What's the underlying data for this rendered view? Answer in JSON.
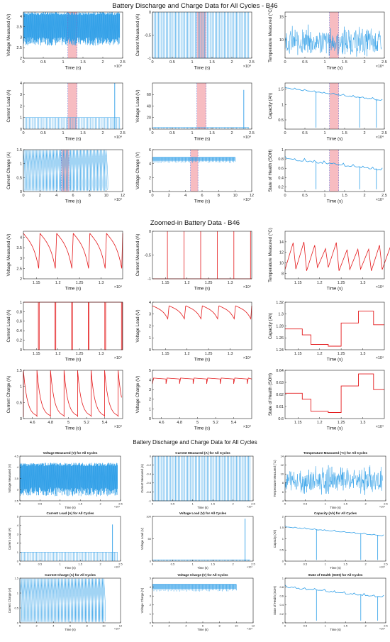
{
  "figure": {
    "title1": "Battery Discharge and Charge Data for All Cycles - B46",
    "title2": "Zoomed-in Battery Data - B46",
    "title3": "Battery Discharge and Charge Data for All Cycles",
    "exponent": "×10⁴"
  },
  "colors": {
    "all_cycles": "#2f9fe8",
    "zoomed": "#e41a1c",
    "highlight": "#f4a6ac",
    "dashed": "#6f6fcf"
  },
  "chart_data": [
    {
      "section": "all",
      "type": "line",
      "ylabel": "Voltage Measured (V)",
      "xlabel": "Time (s)",
      "xlim": [
        0,
        2.5
      ],
      "ylim": [
        2,
        4.2
      ],
      "xticks": [
        "0",
        "0.5",
        "1",
        "1.5",
        "2",
        "2.5"
      ],
      "yticks": [
        "2",
        "2.5",
        "3",
        "3.5",
        "4"
      ],
      "pattern": "band",
      "band": [
        2.6,
        4.2
      ],
      "mean": 3.5,
      "highlight": [
        1.12,
        1.35
      ],
      "xexp": "×10⁴"
    },
    {
      "section": "all",
      "type": "line",
      "ylabel": "Current Measured (A)",
      "xlabel": "Time (s)",
      "xlim": [
        0,
        2.5
      ],
      "ylim": [
        -1,
        0
      ],
      "xticks": [
        "0",
        "0.5",
        "1",
        "1.5",
        "2",
        "2.5"
      ],
      "yticks": [
        "-1",
        "-0.5",
        "0"
      ],
      "pattern": "spikes",
      "base": -1,
      "top": 0,
      "highlight": [
        1.12,
        1.35
      ],
      "xexp": "×10⁴"
    },
    {
      "section": "all",
      "type": "line",
      "ylabel": "Temperature Measured (°C)",
      "xlabel": "Time (s)",
      "xlim": [
        0,
        2.5
      ],
      "ylim": [
        6,
        16
      ],
      "xticks": [
        "0",
        "0.5",
        "1",
        "1.5",
        "2",
        "2.5"
      ],
      "yticks": [
        "10",
        "15"
      ],
      "pattern": "noise",
      "band": [
        6.5,
        15
      ],
      "mean": 9,
      "highlight": [
        1.12,
        1.35
      ],
      "xexp": "×10⁴"
    },
    {
      "section": "all",
      "type": "line",
      "ylabel": "Current Load (A)",
      "xlabel": "Time (s)",
      "xlim": [
        0,
        2.5
      ],
      "ylim": [
        0,
        4
      ],
      "xticks": [
        "0",
        "0.5",
        "1",
        "1.5",
        "2",
        "2.5"
      ],
      "yticks": [
        "0",
        "1",
        "2",
        "3",
        "4"
      ],
      "pattern": "flatspikes",
      "base": 1,
      "floor": 0,
      "spike": {
        "x": 2.3,
        "y": 4.1
      },
      "highlight": [
        1.12,
        1.35
      ],
      "xexp": "×10⁴"
    },
    {
      "section": "all",
      "type": "line",
      "ylabel": "Voltage Load (V)",
      "xlabel": "Time (s)",
      "xlim": [
        0,
        2.5
      ],
      "ylim": [
        0,
        80
      ],
      "xticks": [
        "0",
        "0.5",
        "1",
        "1.5",
        "2",
        "2.5"
      ],
      "yticks": [
        "0",
        "20",
        "40",
        "60"
      ],
      "pattern": "flatspikes",
      "base": 3,
      "floor": 0,
      "spike": {
        "x": 2.3,
        "y": 68
      },
      "highlight": [
        1.12,
        1.35
      ],
      "xexp": "×10⁴"
    },
    {
      "section": "all",
      "type": "line",
      "ylabel": "Capacity (Ah)",
      "xlabel": "Time (s)",
      "xlim": [
        0,
        2.5
      ],
      "ylim": [
        0.2,
        1.7
      ],
      "xticks": [
        "0",
        "0.5",
        "1",
        "1.5",
        "2",
        "2.5"
      ],
      "yticks": [
        "0.5",
        "1",
        "1.5"
      ],
      "pattern": "decay",
      "start": 1.55,
      "end": 1.15,
      "dips": [
        0.78,
        1.88,
        2.3
      ],
      "dipTo": 0.25,
      "highlight": [
        1.12,
        1.35
      ],
      "xexp": "×10⁴"
    },
    {
      "section": "all",
      "type": "line",
      "ylabel": "Current Charge (A)",
      "xlabel": "Time (s)",
      "xlim": [
        0,
        12
      ],
      "ylim": [
        0,
        1.5
      ],
      "xticks": [
        "0",
        "2",
        "4",
        "6",
        "8",
        "10",
        "12"
      ],
      "yticks": [
        "0",
        "0.5",
        "1",
        "1.5"
      ],
      "pattern": "charge",
      "end": 10,
      "highlight": [
        4.6,
        5.5
      ],
      "xexp": "×10⁴"
    },
    {
      "section": "all",
      "type": "line",
      "ylabel": "Voltage Charge (V)",
      "xlabel": "Time (s)",
      "xlim": [
        0,
        12
      ],
      "ylim": [
        0,
        6
      ],
      "xticks": [
        "0",
        "2",
        "4",
        "6",
        "8",
        "10",
        "12"
      ],
      "yticks": [
        "0",
        "2",
        "4",
        "6"
      ],
      "pattern": "vcharge",
      "end": 10,
      "highlight": [
        4.6,
        5.5
      ],
      "xexp": "×10⁴"
    },
    {
      "section": "all",
      "type": "line",
      "ylabel": "State of Health (SOH)",
      "xlabel": "Time (s)",
      "xlim": [
        0,
        2.5
      ],
      "ylim": [
        0.1,
        1
      ],
      "xticks": [
        "0",
        "0.5",
        "1",
        "1.5",
        "2",
        "2.5"
      ],
      "yticks": [
        "0.2",
        "0.4",
        "0.6",
        "0.8",
        "1"
      ],
      "pattern": "decay",
      "start": 0.82,
      "end": 0.58,
      "dips": [
        0.78,
        1.88,
        2.3
      ],
      "dipTo": 0.15,
      "highlight": [
        1.12,
        1.35
      ],
      "xexp": "×10⁴"
    },
    {
      "section": "zoom",
      "type": "line",
      "ylabel": "Voltage Measured (V)",
      "xlabel": "Time (s)",
      "xlim": [
        1.12,
        1.35
      ],
      "ylim": [
        2,
        4.3
      ],
      "xticks": [
        "1.15",
        "1.2",
        "1.25",
        "1.3"
      ],
      "yticks": [
        "2",
        "2.5",
        "3",
        "3.5",
        "4"
      ],
      "pattern": "sawdown",
      "period": 0.0385,
      "hi": 4.2,
      "lo": 2.5,
      "xexp": "×10⁴"
    },
    {
      "section": "zoom",
      "type": "line",
      "ylabel": "Current Measured (A)",
      "xlabel": "Time (s)",
      "xlim": [
        1.12,
        1.35
      ],
      "ylim": [
        -1,
        0
      ],
      "xticks": [
        "1.15",
        "1.2",
        "1.25",
        "1.3"
      ],
      "yticks": [
        "-1",
        "-0.5",
        "0"
      ],
      "pattern": "zspikes",
      "period": 0.0385,
      "base": -1,
      "top": 0,
      "xexp": "×10⁴"
    },
    {
      "section": "zoom",
      "type": "line",
      "ylabel": "Temperature Measured (°C)",
      "xlabel": "Time (s)",
      "xlim": [
        1.12,
        1.35
      ],
      "ylim": [
        7,
        16
      ],
      "xticks": [
        "1.15",
        "1.2",
        "1.25",
        "1.3"
      ],
      "yticks": [
        "8",
        "10",
        "12",
        "14"
      ],
      "pattern": "sawup",
      "period": 0.025,
      "hi": 14,
      "lo": 8.5,
      "xexp": "×10⁴"
    },
    {
      "section": "zoom",
      "type": "line",
      "ylabel": "Current Load (A)",
      "xlabel": "Time (s)",
      "xlim": [
        1.12,
        1.35
      ],
      "ylim": [
        0,
        1
      ],
      "xticks": [
        "1.15",
        "1.2",
        "1.25",
        "1.3"
      ],
      "yticks": [
        "0",
        "0.2",
        "0.4",
        "0.6",
        "0.8",
        "1"
      ],
      "pattern": "square",
      "period": 0.0385,
      "hi": 1,
      "lo": 0,
      "xexp": "×10⁴"
    },
    {
      "section": "zoom",
      "type": "line",
      "ylabel": "Voltage Load (V)",
      "xlabel": "Time (s)",
      "xlim": [
        1.12,
        1.35
      ],
      "ylim": [
        0,
        4
      ],
      "xticks": [
        "1.15",
        "1.2",
        "1.25",
        "1.3"
      ],
      "yticks": [
        "0",
        "1",
        "2",
        "3",
        "4"
      ],
      "pattern": "sawdown",
      "period": 0.0385,
      "hi": 3.7,
      "lo": 2.6,
      "xexp": "×10⁴"
    },
    {
      "section": "zoom",
      "type": "line",
      "ylabel": "Capacity (Ah)",
      "xlabel": "Time (s)",
      "xlim": [
        1.12,
        1.35
      ],
      "ylim": [
        1.24,
        1.32
      ],
      "xticks": [
        "1.15",
        "1.2",
        "1.25",
        "1.3"
      ],
      "yticks": [
        "1.24",
        "1.26",
        "1.28",
        "1.3",
        "1.32"
      ],
      "pattern": "steps",
      "steps": [
        [
          1.12,
          1.275
        ],
        [
          1.16,
          1.265
        ],
        [
          1.18,
          1.249
        ],
        [
          1.22,
          1.246
        ],
        [
          1.25,
          1.285
        ],
        [
          1.29,
          1.305
        ],
        [
          1.325,
          1.282
        ]
      ],
      "xexp": "×10⁴"
    },
    {
      "section": "zoom",
      "type": "line",
      "ylabel": "Current Charge (A)",
      "xlabel": "Time (s)",
      "xlim": [
        4.5,
        5.6
      ],
      "ylim": [
        0,
        1.5
      ],
      "xticks": [
        "4.6",
        "4.8",
        "5",
        "5.2",
        "5.4"
      ],
      "yticks": [
        "0",
        "0.5",
        "1",
        "1.5"
      ],
      "pattern": "chargedecay",
      "period": 0.15,
      "hi": 1.5,
      "lo": 0.05,
      "xexp": "×10⁴"
    },
    {
      "section": "zoom",
      "type": "line",
      "ylabel": "Voltage Charge (V)",
      "xlabel": "Time (s)",
      "xlim": [
        4.5,
        5.6
      ],
      "ylim": [
        0,
        5
      ],
      "xticks": [
        "4.6",
        "4.8",
        "5",
        "5.2",
        "5.4"
      ],
      "yticks": [
        "0",
        "1",
        "2",
        "3",
        "4",
        "5"
      ],
      "pattern": "vchargesaw",
      "period": 0.15,
      "hi": 4.2,
      "lo": 3.6,
      "xexp": "×10⁴"
    },
    {
      "section": "zoom",
      "type": "line",
      "ylabel": "State of Health (SOH)",
      "xlabel": "Time (s)",
      "xlim": [
        1.12,
        1.35
      ],
      "ylim": [
        0.6,
        0.64
      ],
      "xticks": [
        "1.15",
        "1.2",
        "1.25",
        "1.3"
      ],
      "yticks": [
        "0.6",
        "0.61",
        "0.62",
        "0.63",
        "0.64"
      ],
      "pattern": "steps",
      "steps": [
        [
          1.12,
          0.621
        ],
        [
          1.16,
          0.616
        ],
        [
          1.18,
          0.606
        ],
        [
          1.22,
          0.605
        ],
        [
          1.25,
          0.627
        ],
        [
          1.29,
          0.637
        ],
        [
          1.325,
          0.624
        ]
      ],
      "xexp": "×10⁴"
    },
    {
      "section": "small",
      "type": "line",
      "title": "Voltage Measured (V) for All Cycles",
      "ylabel": "Voltage Measured (V)",
      "xlabel": "Time (s)",
      "xlim": [
        0,
        2.5
      ],
      "ylim": [
        2.5,
        4.5
      ],
      "xticks": [
        "0",
        "0.5",
        "1",
        "1.5",
        "2",
        "2.5"
      ],
      "yticks": [
        "2.5",
        "3",
        "3.5",
        "4",
        "4.5"
      ],
      "pattern": "band",
      "band": [
        2.7,
        4.2
      ],
      "mean": 3.5,
      "xexp": "×10⁴"
    },
    {
      "section": "small",
      "type": "line",
      "title": "Current Measured (A) for All Cycles",
      "ylabel": "Current Measured (A)",
      "xlabel": "Time (s)",
      "xlim": [
        0,
        2.5
      ],
      "ylim": [
        -1,
        0
      ],
      "xticks": [
        "0",
        "0.5",
        "1",
        "1.5",
        "2",
        "2.5"
      ],
      "yticks": [
        "-1",
        "-0.8",
        "-0.6",
        "-0.4",
        "-0.2",
        "0"
      ],
      "pattern": "spikes",
      "base": -1,
      "top": 0,
      "xexp": "×10⁴"
    },
    {
      "section": "small",
      "type": "line",
      "title": "Temperature Measured (°C) for All Cycles",
      "ylabel": "Temperature Measured (°C)",
      "xlabel": "Time (s)",
      "xlim": [
        0,
        2.5
      ],
      "ylim": [
        4,
        14
      ],
      "xticks": [
        "0",
        "0.5",
        "1",
        "1.5",
        "2",
        "2.5"
      ],
      "yticks": [
        "4",
        "6",
        "8",
        "10",
        "12",
        "14"
      ],
      "pattern": "noise",
      "band": [
        5,
        13
      ],
      "mean": 8,
      "xexp": "×10⁴"
    },
    {
      "section": "small",
      "type": "line",
      "title": "Current Load (A) for All Cycles",
      "ylabel": "Current Load (A)",
      "xlabel": "Time (s)",
      "xlim": [
        0,
        2.5
      ],
      "ylim": [
        0,
        5
      ],
      "xticks": [
        "0",
        "0.5",
        "1",
        "1.5",
        "2",
        "2.5"
      ],
      "yticks": [
        "0",
        "1",
        "2",
        "3",
        "4",
        "5"
      ],
      "pattern": "flatspikes",
      "base": 1,
      "floor": 0,
      "spike": {
        "x": 2.3,
        "y": 4.1
      },
      "xexp": "×10⁴"
    },
    {
      "section": "small",
      "type": "line",
      "title": "Voltage Load (V) for All Cycles",
      "ylabel": "Voltage Load (V)",
      "xlabel": "Time (s)",
      "xlim": [
        0,
        2.5
      ],
      "ylim": [
        0,
        100
      ],
      "xticks": [
        "0",
        "0.5",
        "1",
        "1.5",
        "2",
        "2.5"
      ],
      "yticks": [
        "0",
        "50",
        "100"
      ],
      "pattern": "flatspikes",
      "base": 3,
      "floor": 0,
      "spike": {
        "x": 2.3,
        "y": 95
      },
      "xexp": "×10⁴"
    },
    {
      "section": "small",
      "type": "line",
      "title": "Capacity (Ah) for All Cycles",
      "ylabel": "Capacity (Ah)",
      "xlabel": "Time (s)",
      "xlim": [
        0,
        2.5
      ],
      "ylim": [
        0,
        2
      ],
      "xticks": [
        "0",
        "0.5",
        "1",
        "1.5",
        "2",
        "2.5"
      ],
      "yticks": [
        "0",
        "0.5",
        "1",
        "1.5",
        "2"
      ],
      "pattern": "decay",
      "start": 1.55,
      "end": 1.15,
      "dips": [
        0.78,
        1.88,
        2.3
      ],
      "dipTo": 0.05,
      "xexp": "×10⁴"
    },
    {
      "section": "small",
      "type": "line",
      "title": "Current Charge (A) for All Cycles",
      "ylabel": "Current Charge (A)",
      "xlabel": "Time (s)",
      "xlim": [
        0,
        12
      ],
      "ylim": [
        0,
        1.5
      ],
      "xticks": [
        "0",
        "2",
        "4",
        "6",
        "8",
        "10",
        "12"
      ],
      "yticks": [
        "0",
        "0.5",
        "1",
        "1.5"
      ],
      "pattern": "charge",
      "end": 10,
      "xexp": "×10⁴"
    },
    {
      "section": "small",
      "type": "line",
      "title": "Voltage Charge (V) for All Cycles",
      "ylabel": "Voltage Charge (V)",
      "xlabel": "Time (s)",
      "xlim": [
        0,
        12
      ],
      "ylim": [
        0,
        5
      ],
      "xticks": [
        "0",
        "2",
        "4",
        "6",
        "8",
        "10",
        "12"
      ],
      "yticks": [
        "0",
        "1",
        "2",
        "3",
        "4",
        "5"
      ],
      "pattern": "vcharge",
      "end": 10,
      "xexp": "×10⁴"
    },
    {
      "section": "small",
      "type": "line",
      "title": "State of Health (SOH) for All Cycles",
      "ylabel": "State of Health (SOH)",
      "xlabel": "Time (s)",
      "xlim": [
        0,
        2.5
      ],
      "ylim": [
        0,
        1
      ],
      "xticks": [
        "0",
        "0.5",
        "1",
        "1.5",
        "2",
        "2.5"
      ],
      "yticks": [
        "0",
        "0.2",
        "0.4",
        "0.6",
        "0.8",
        "1"
      ],
      "pattern": "decay",
      "start": 0.82,
      "end": 0.58,
      "dips": [
        0.78,
        1.88,
        2.3
      ],
      "dipTo": 0.05,
      "xexp": "×10⁴"
    }
  ]
}
